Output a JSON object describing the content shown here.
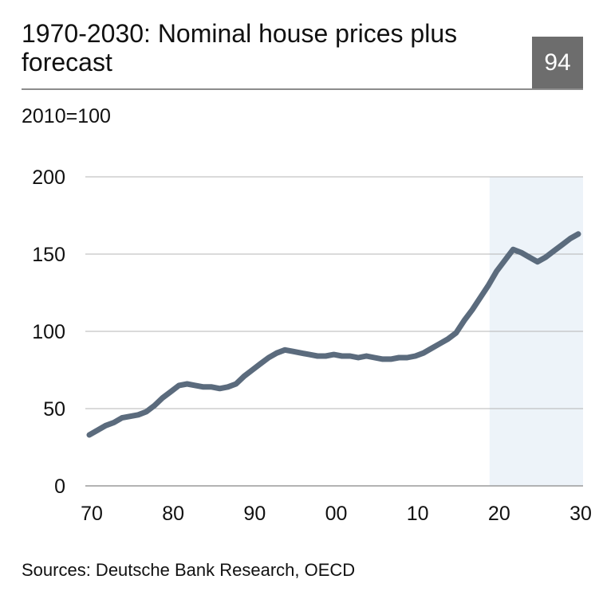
{
  "header": {
    "title": "1970-2030: Nominal house prices plus forecast",
    "page_number": "94"
  },
  "unit_label": "2010=100",
  "source": "Sources: Deutsche Bank Research, OECD",
  "colors": {
    "line": "#5b6b7d",
    "forecast_shade": "#edf3f9",
    "grid": "#b5b5b5",
    "axis": "#9a9a9a",
    "badge": "#6d6d6d"
  },
  "chart_data": {
    "type": "line",
    "title": "1970-2030: Nominal house prices plus forecast",
    "ylabel": "2010=100",
    "xlabel": "",
    "xlim": [
      1970,
      2030
    ],
    "ylim": [
      0,
      200
    ],
    "grid": true,
    "x_ticks": [
      {
        "value": 1970,
        "label": "70"
      },
      {
        "value": 1980,
        "label": "80"
      },
      {
        "value": 1990,
        "label": "90"
      },
      {
        "value": 2000,
        "label": "00"
      },
      {
        "value": 2010,
        "label": "10"
      },
      {
        "value": 2020,
        "label": "20"
      },
      {
        "value": 2030,
        "label": "30"
      }
    ],
    "y_ticks": [
      0,
      50,
      100,
      150,
      200
    ],
    "forecast_region": [
      2020,
      2030
    ],
    "series": [
      {
        "x": [
          1970,
          1971,
          1972,
          1973,
          1974,
          1975,
          1976,
          1977,
          1978,
          1979,
          1980,
          1981,
          1982,
          1983,
          1984,
          1985,
          1986,
          1987,
          1988,
          1989,
          1990,
          1991,
          1992,
          1993,
          1994,
          1995,
          1996,
          1997,
          1998,
          1999,
          2000,
          2001,
          2002,
          2003,
          2004,
          2005,
          2006,
          2007,
          2008,
          2009,
          2010,
          2011,
          2012,
          2013,
          2014,
          2015,
          2016,
          2017,
          2018,
          2019,
          2020,
          2021,
          2022,
          2023,
          2024,
          2025,
          2026,
          2027,
          2028,
          2029,
          2030
        ],
        "values": [
          33,
          36,
          39,
          41,
          44,
          45,
          46,
          48,
          52,
          57,
          61,
          65,
          66,
          65,
          64,
          64,
          63,
          64,
          66,
          71,
          75,
          79,
          83,
          86,
          88,
          87,
          86,
          85,
          84,
          84,
          85,
          84,
          84,
          83,
          84,
          83,
          82,
          82,
          83,
          83,
          84,
          86,
          89,
          92,
          95,
          99,
          107,
          114,
          122,
          130,
          139,
          146,
          153,
          151,
          148,
          145,
          148,
          152,
          156,
          160,
          163
        ]
      }
    ]
  }
}
